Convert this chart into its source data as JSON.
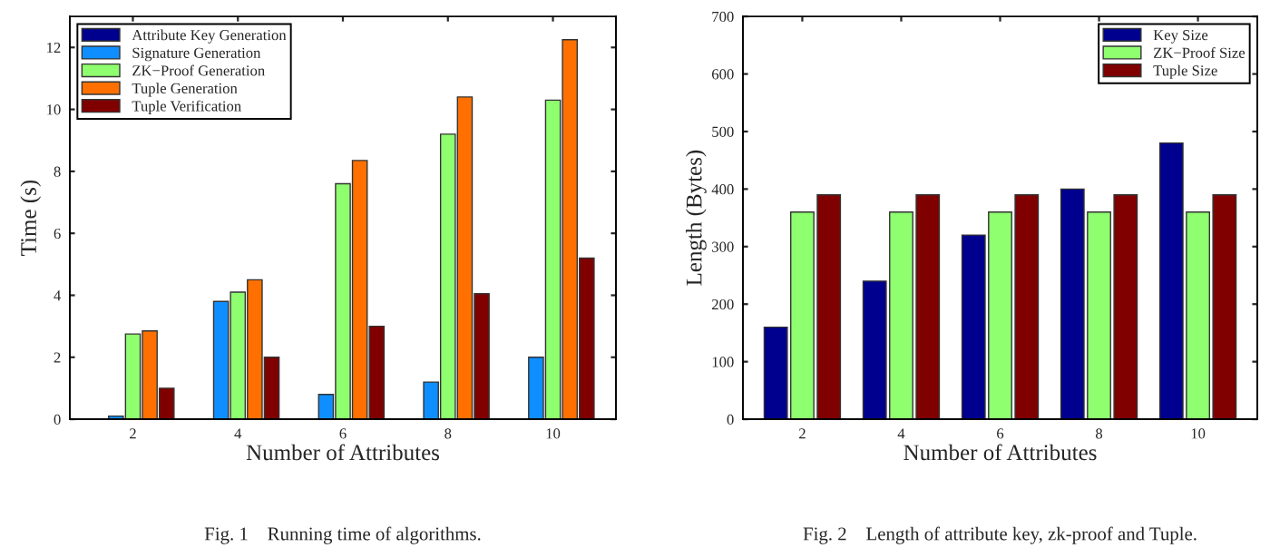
{
  "chart_data": [
    {
      "type": "bar",
      "title": "Fig. 1    Running time of algorithms.",
      "xlabel": "Number of Attributes",
      "ylabel": "Time (s)",
      "categories": [
        "2",
        "4",
        "6",
        "8",
        "10"
      ],
      "series": [
        {
          "name": "Attribute Key Generation",
          "color": "#00008f",
          "values": [
            null,
            null,
            null,
            null,
            null
          ]
        },
        {
          "name": "Signature Generation",
          "color": "#0f8fff",
          "values": [
            0.1,
            3.8,
            0.8,
            1.2,
            2.0
          ]
        },
        {
          "name": "ZK−Proof Generation",
          "color": "#8fff70",
          "values": [
            2.75,
            4.1,
            7.6,
            9.2,
            10.3
          ]
        },
        {
          "name": "Tuple Generation",
          "color": "#ff7000",
          "values": [
            2.85,
            4.5,
            8.35,
            10.4,
            12.25
          ]
        },
        {
          "name": "Tuple Verification",
          "color": "#800000",
          "values": [
            1.0,
            2.0,
            3.0,
            4.05,
            5.2
          ]
        }
      ],
      "ylim": [
        0,
        13
      ],
      "yticks": [
        0,
        2,
        4,
        6,
        8,
        10,
        12
      ],
      "grid": false,
      "legend": "top left"
    },
    {
      "type": "bar",
      "title": "Fig. 2    Length of attribute key, zk-proof and Tuple.",
      "xlabel": "Number of Attributes",
      "ylabel": "Length (Bytes)",
      "categories": [
        "2",
        "4",
        "6",
        "8",
        "10"
      ],
      "series": [
        {
          "name": "Key Size",
          "color": "#00008f",
          "values": [
            160,
            240,
            320,
            400,
            480
          ]
        },
        {
          "name": "ZK−Proof Size",
          "color": "#8fff70",
          "values": [
            360,
            360,
            360,
            360,
            360
          ]
        },
        {
          "name": "Tuple Size",
          "color": "#800000",
          "values": [
            390,
            390,
            390,
            390,
            390
          ]
        }
      ],
      "ylim": [
        0,
        700
      ],
      "yticks": [
        0,
        100,
        200,
        300,
        400,
        500,
        600,
        700
      ],
      "grid": false,
      "legend": "top right"
    }
  ]
}
